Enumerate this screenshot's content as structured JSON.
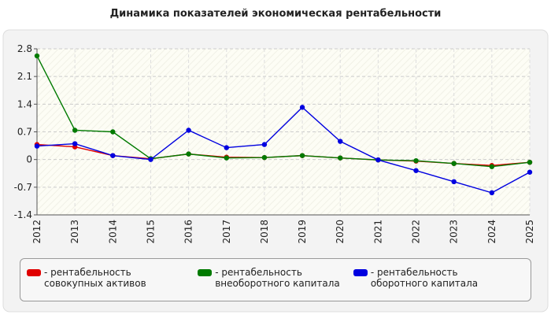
{
  "chart_data": {
    "type": "line",
    "title": "Динамика показателей экономическая рентабельности",
    "categories": [
      "2012",
      "2013",
      "2014",
      "2015",
      "2016",
      "2017",
      "2018",
      "2019",
      "2020",
      "2021",
      "2022",
      "2023",
      "2024",
      "2025"
    ],
    "series": [
      {
        "name": "- рентабельность совокупных активов",
        "color": "#e00000",
        "values": [
          0.38,
          0.32,
          0.1,
          0.02,
          0.14,
          0.06,
          0.05,
          0.1,
          0.04,
          -0.01,
          -0.04,
          -0.1,
          -0.15,
          -0.07
        ]
      },
      {
        "name": "- рентабельность внеоборотного капитала",
        "color": "#007a00",
        "values": [
          2.62,
          0.74,
          0.7,
          0.02,
          0.14,
          0.04,
          0.05,
          0.1,
          0.04,
          -0.01,
          -0.03,
          -0.1,
          -0.18,
          -0.07
        ]
      },
      {
        "name": "- рентабельность оборотного капитала",
        "color": "#0000e0",
        "values": [
          0.34,
          0.4,
          0.1,
          0.0,
          0.74,
          0.3,
          0.38,
          1.32,
          0.46,
          -0.01,
          -0.28,
          -0.56,
          -0.84,
          -0.32
        ]
      }
    ],
    "ylim": [
      -1.4,
      2.8
    ],
    "yticks": [
      -1.4,
      -0.7,
      0,
      0.7,
      1.4,
      2.1,
      2.8
    ],
    "grid": true
  }
}
